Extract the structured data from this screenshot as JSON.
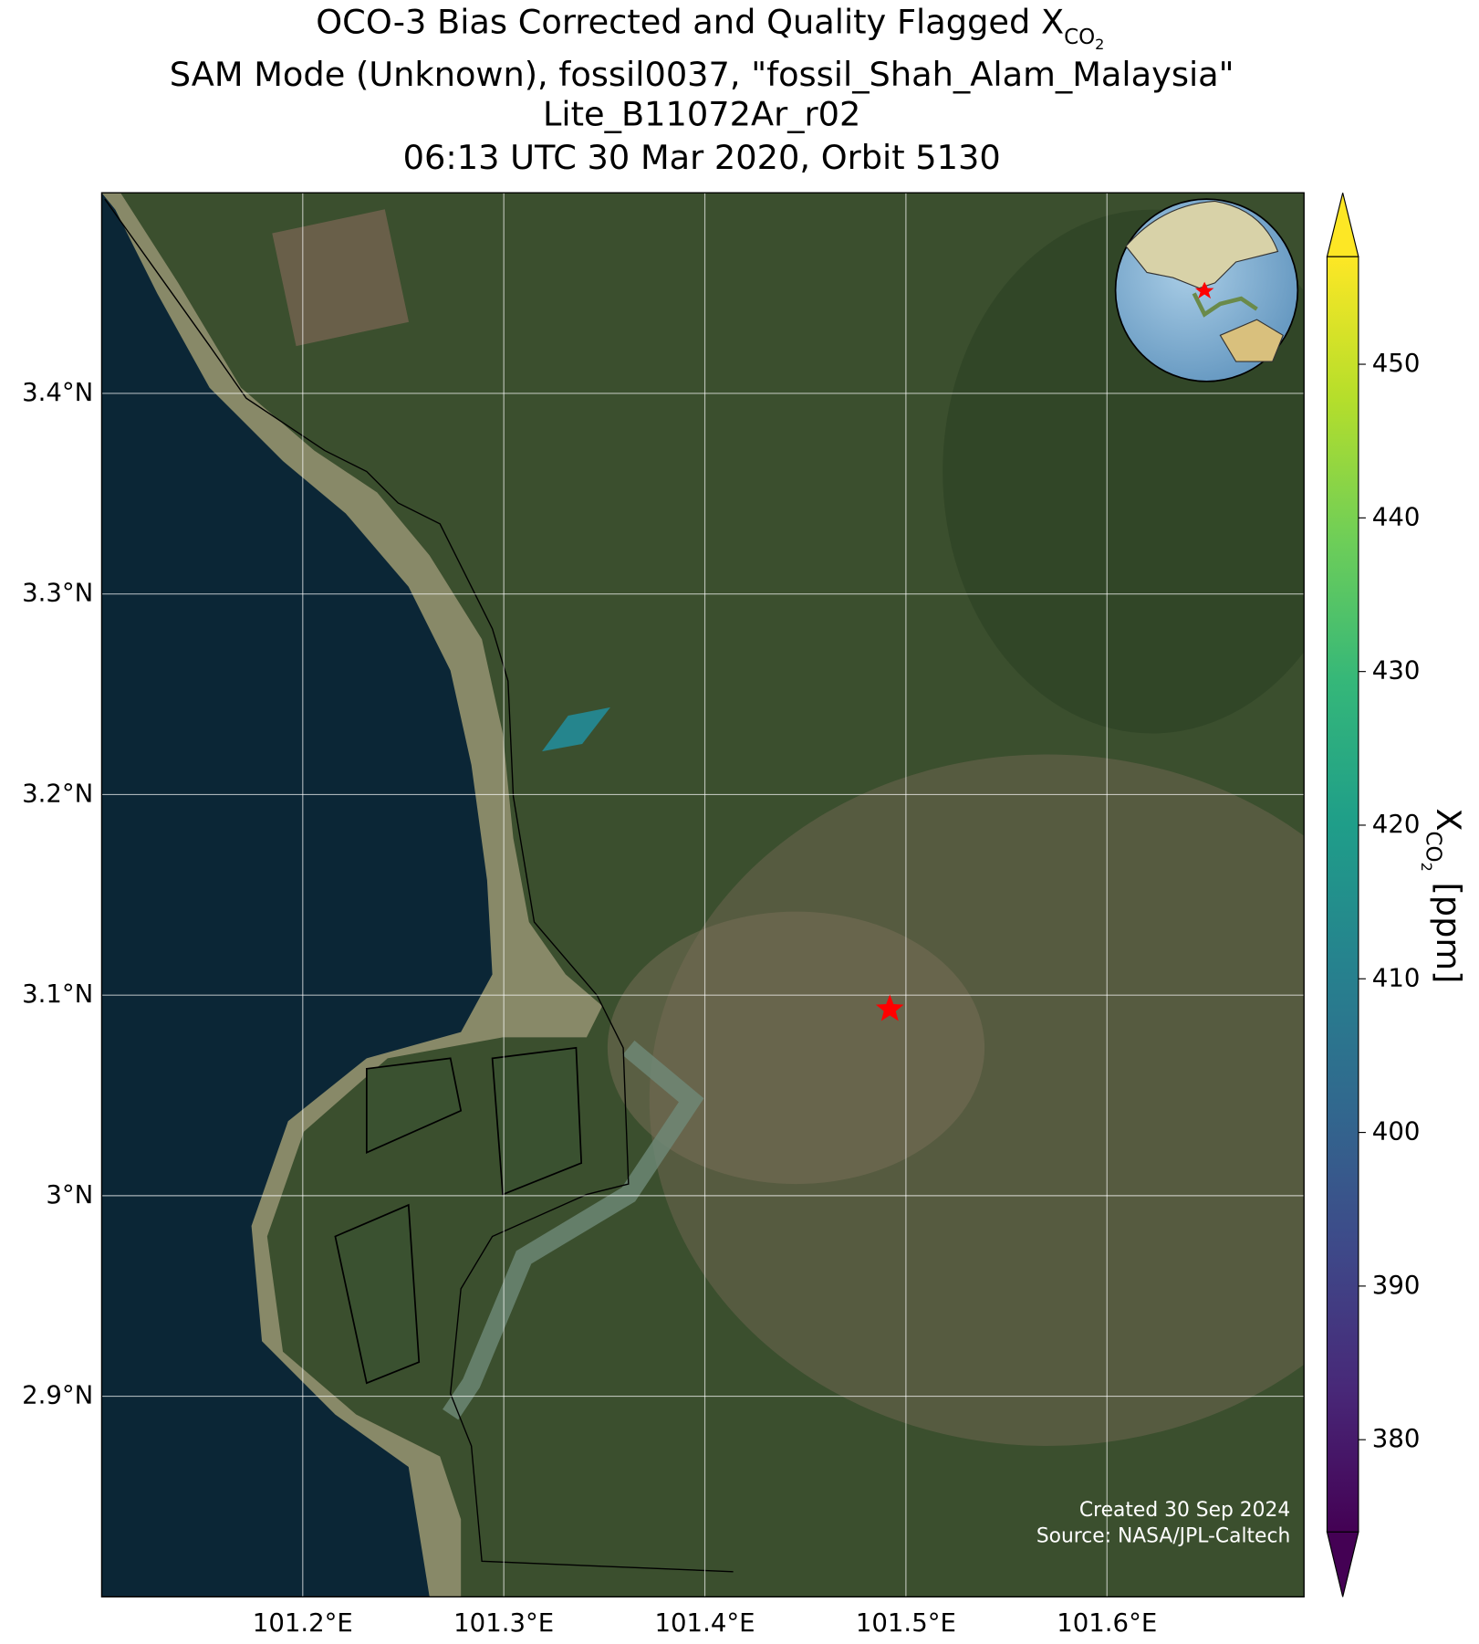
{
  "title_lines": [
    "OCO-3 Bias Corrected and Quality Flagged ",
    "SAM Mode (Unknown), fossil0037, \"fossil_Shah_Alam_Malaysia\"",
    "Lite_B11072Ar_r02",
    "06:13 UTC 30 Mar 2020, Orbit 5130"
  ],
  "symbol": {
    "base": "X",
    "sub": "CO",
    "subsub": "2"
  },
  "map": {
    "xlim": [
      101.1,
      101.698
    ],
    "ylim": [
      2.8,
      3.5
    ],
    "xticks": [
      {
        "value": 101.2,
        "label": "101.2°E"
      },
      {
        "value": 101.3,
        "label": "101.3°E"
      },
      {
        "value": 101.4,
        "label": "101.4°E"
      },
      {
        "value": 101.5,
        "label": "101.5°E"
      },
      {
        "value": 101.6,
        "label": "101.6°E"
      }
    ],
    "yticks": [
      {
        "value": 2.9,
        "label": "2.9°N"
      },
      {
        "value": 3,
        "label": "3°N"
      },
      {
        "value": 3.1,
        "label": "3.1°N"
      },
      {
        "value": 3.2,
        "label": "3.2°N"
      },
      {
        "value": 3.3,
        "label": "3.3°N"
      },
      {
        "value": 3.4,
        "label": "3.4°N"
      }
    ],
    "grid": true,
    "footprint": {
      "lon": [
        101.319,
        101.332,
        101.353,
        101.339
      ],
      "lat": [
        3.2215,
        3.2393,
        3.2435,
        3.2252
      ],
      "value": 412
    },
    "target": {
      "lon": 101.492,
      "lat": 3.093,
      "color": "#ff0000"
    },
    "credits": [
      "Created 30 Sep 2024",
      "Source: NASA/JPL-Caltech"
    ]
  },
  "colorbar": {
    "lim": [
      374,
      457
    ],
    "ticks": [
      380,
      390,
      400,
      410,
      420,
      430,
      440,
      450
    ],
    "units": " [ppm]",
    "colormap": "viridis"
  }
}
